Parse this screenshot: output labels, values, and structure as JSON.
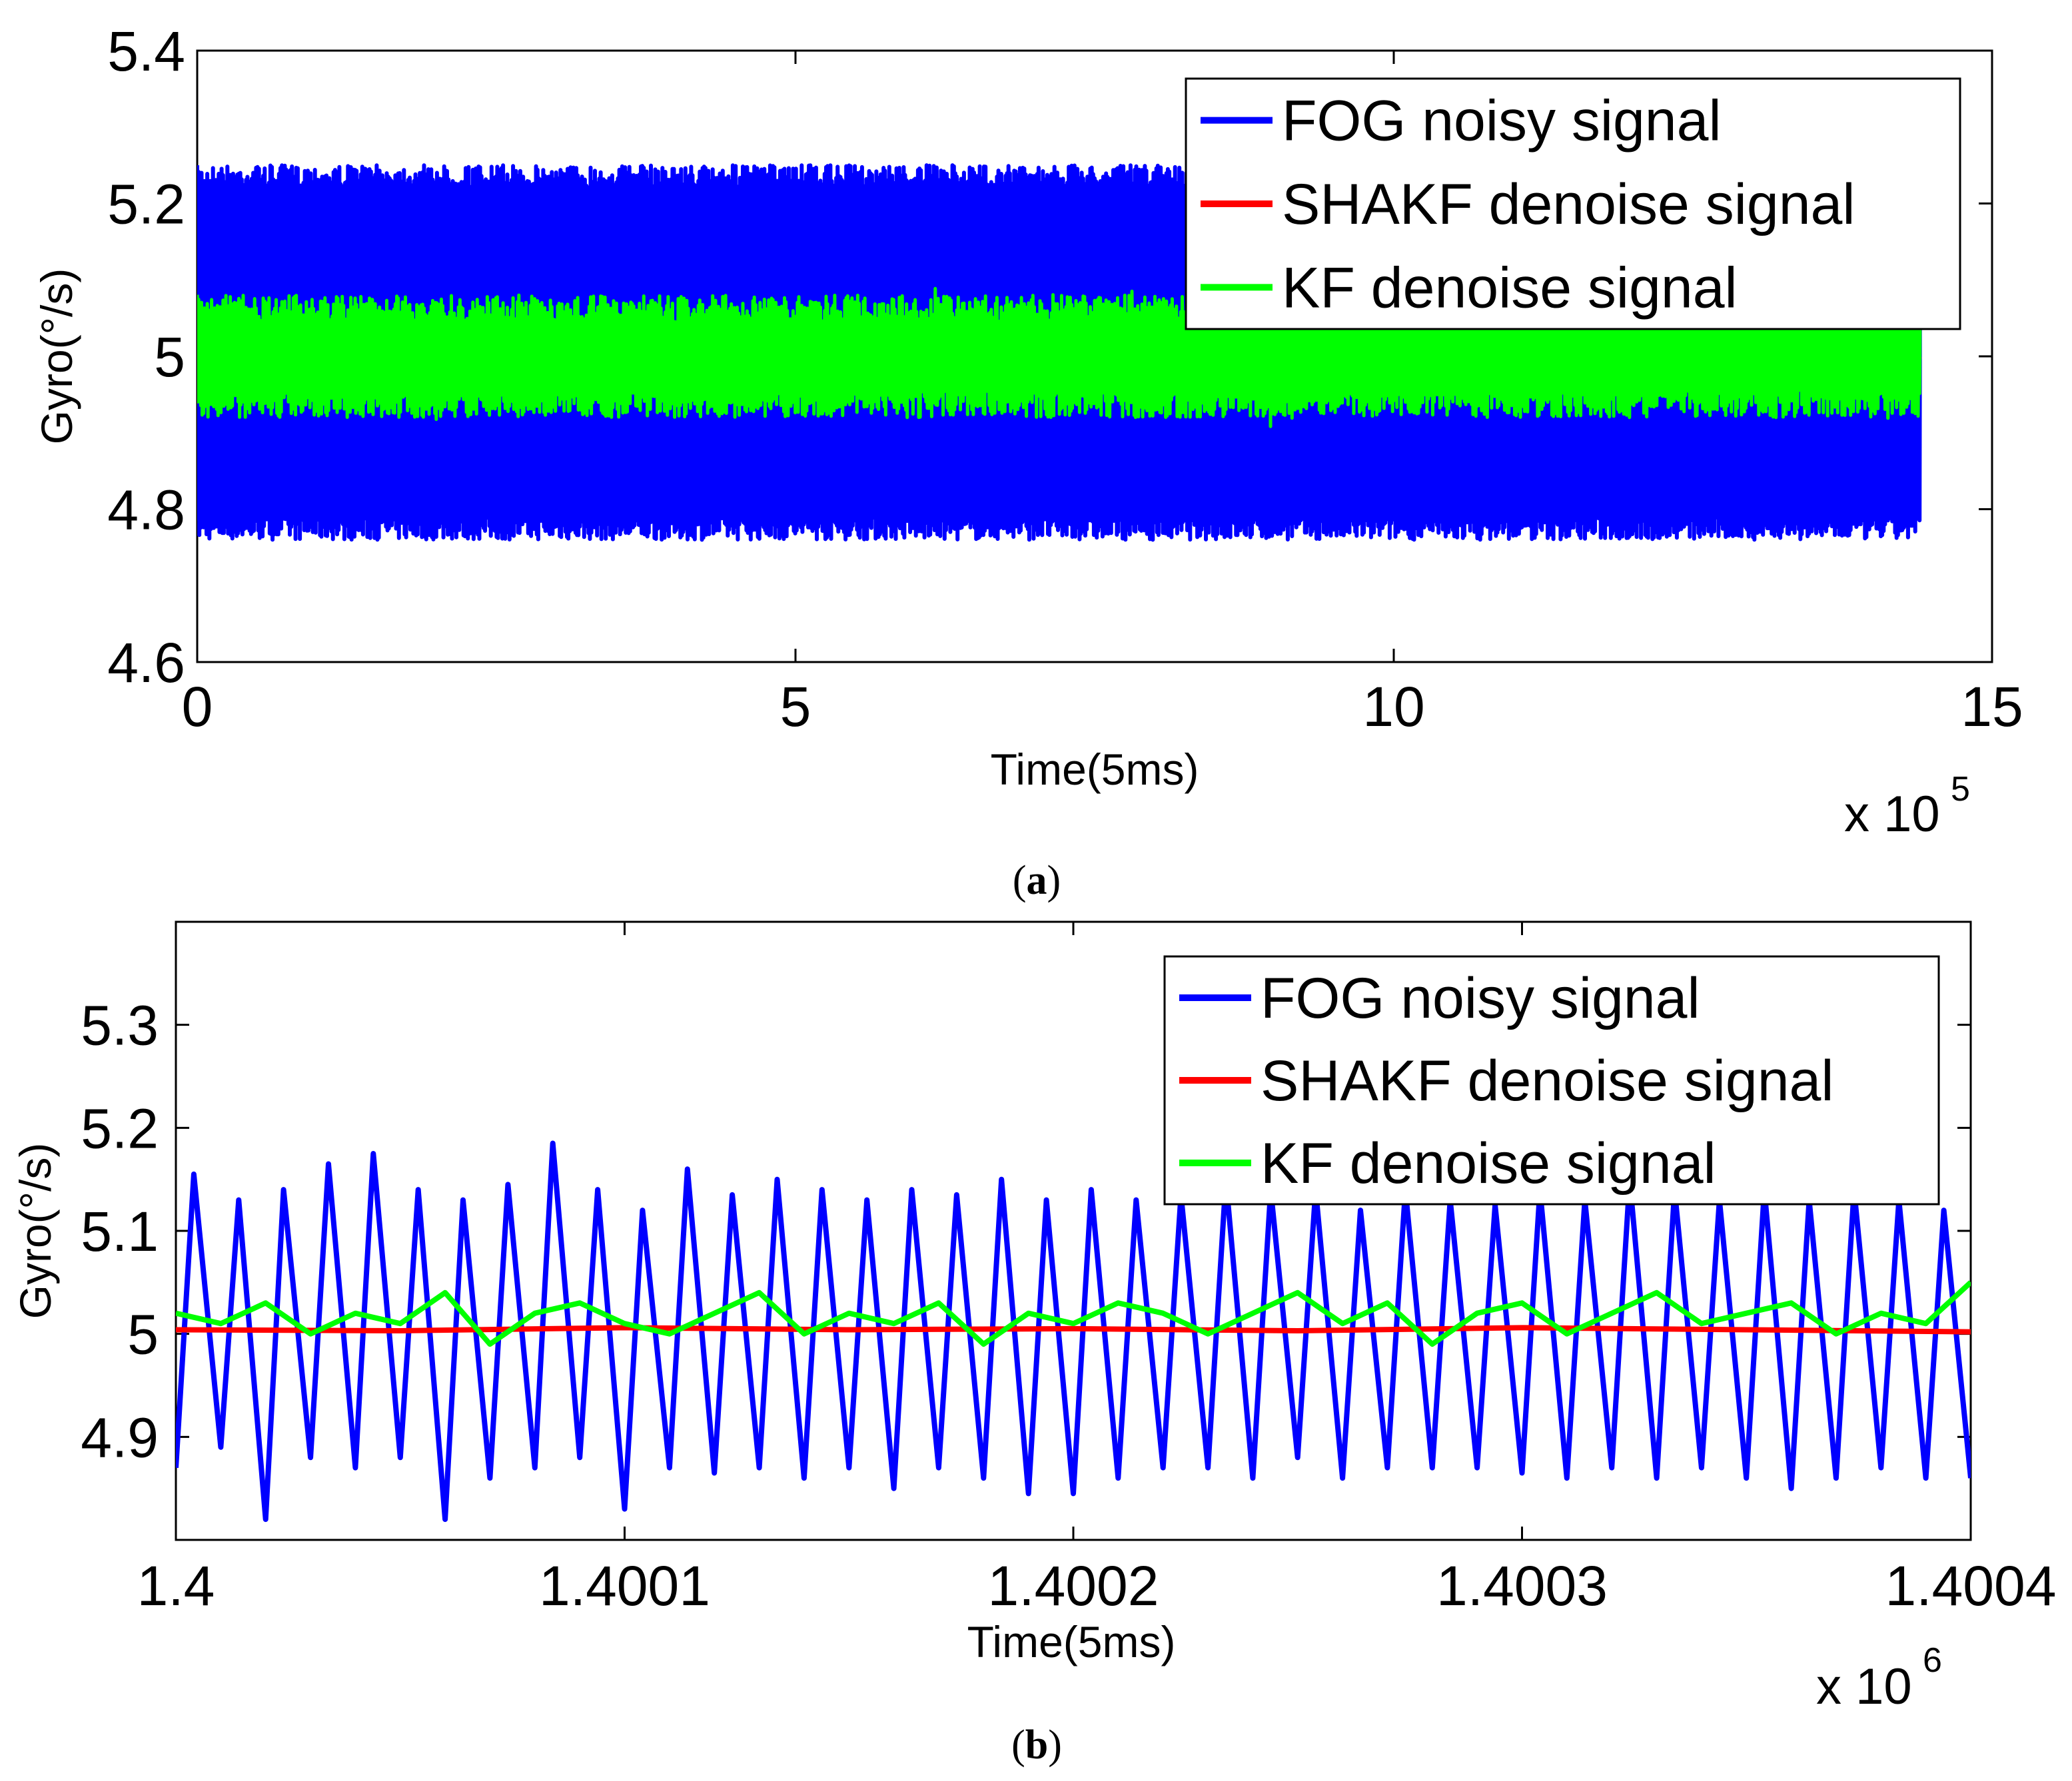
{
  "chart_data": [
    {
      "id": "a",
      "type": "line",
      "caption_letter": "a",
      "xlabel": "Time(5ms)",
      "ylabel": "Gyro(°/s)",
      "x_scale_label": "x 10",
      "x_scale_exponent": "5",
      "xlim": [
        0,
        15
      ],
      "ylim": [
        4.6,
        5.4
      ],
      "xticks": [
        "0",
        "5",
        "10",
        "15"
      ],
      "xtick_values": [
        0,
        5,
        10,
        15
      ],
      "yticks": [
        "4.6",
        "4.8",
        "5",
        "5.2",
        "5.4"
      ],
      "ytick_values": [
        4.6,
        4.8,
        5.0,
        5.2,
        5.4
      ],
      "x_data_range": [
        0,
        14.4
      ],
      "series": [
        {
          "name": "FOG noisy signal",
          "color": "#0000ff",
          "band": [
            4.76,
            5.25
          ],
          "mean": 5.0
        },
        {
          "name": "SHAKF denoise signal",
          "color": "#ff0000",
          "band": [
            4.995,
            5.005
          ],
          "mean": 5.0
        },
        {
          "name": "KF denoise signal",
          "color": "#00ff00",
          "band": [
            4.93,
            5.09
          ],
          "mean": 5.0
        }
      ],
      "legend": "top-right"
    },
    {
      "id": "b",
      "type": "line",
      "caption_letter": "b",
      "xlabel": "Time(5ms)",
      "ylabel": "Gyro(°/s)",
      "x_scale_label": "x 10",
      "x_scale_exponent": "6",
      "xlim": [
        1.4,
        1.4004
      ],
      "ylim": [
        4.8,
        5.4
      ],
      "xticks": [
        "1.4",
        "1.4001",
        "1.4002",
        "1.4003",
        "1.4004"
      ],
      "xtick_values": [
        1.4,
        1.4001,
        1.4002,
        1.4003,
        1.4004
      ],
      "yticks": [
        "4.9",
        "5",
        "5.1",
        "5.2",
        "5.3"
      ],
      "ytick_values": [
        4.9,
        5.0,
        5.1,
        5.2,
        5.3
      ],
      "series": [
        {
          "name": "FOG noisy signal",
          "color": "#0000ff",
          "x": [
            1.4,
            1.400004,
            1.40001,
            1.400014,
            1.40002,
            1.400024,
            1.40003,
            1.400034,
            1.40004,
            1.400044,
            1.40005,
            1.400054,
            1.40006,
            1.400064,
            1.40007,
            1.400074,
            1.40008,
            1.400084,
            1.40009,
            1.400094,
            1.4001,
            1.400104,
            1.40011,
            1.400114,
            1.40012,
            1.400124,
            1.40013,
            1.400134,
            1.40014,
            1.400144,
            1.40015,
            1.400154,
            1.40016,
            1.400164,
            1.40017,
            1.400174,
            1.40018,
            1.400184,
            1.40019,
            1.400194,
            1.4002,
            1.400204,
            1.40021,
            1.400214,
            1.40022,
            1.400224,
            1.40023,
            1.400234,
            1.40024,
            1.400244,
            1.40025,
            1.400254,
            1.40026,
            1.400264,
            1.40027,
            1.400274,
            1.40028,
            1.400284,
            1.40029,
            1.400294,
            1.4003,
            1.400304,
            1.40031,
            1.400314,
            1.40032,
            1.400324,
            1.40033,
            1.400334,
            1.40034,
            1.400344,
            1.40035,
            1.400354,
            1.40036,
            1.400364,
            1.40037,
            1.400374,
            1.40038,
            1.400384,
            1.40039,
            1.400394,
            1.4004
          ],
          "y": [
            4.87,
            5.155,
            4.89,
            5.13,
            4.82,
            5.14,
            4.88,
            5.165,
            4.87,
            5.175,
            4.88,
            5.14,
            4.82,
            5.13,
            4.86,
            5.145,
            4.87,
            5.185,
            4.88,
            5.14,
            4.83,
            5.12,
            4.87,
            5.16,
            4.865,
            5.135,
            4.87,
            5.15,
            4.86,
            5.14,
            4.87,
            5.13,
            4.85,
            5.14,
            4.87,
            5.135,
            4.86,
            5.15,
            4.845,
            5.13,
            4.845,
            5.14,
            4.86,
            5.13,
            4.87,
            5.135,
            4.87,
            5.15,
            4.86,
            5.14,
            4.88,
            5.14,
            4.86,
            5.12,
            4.87,
            5.14,
            4.87,
            5.13,
            4.87,
            5.125,
            4.865,
            5.14,
            4.86,
            5.13,
            4.87,
            5.15,
            4.86,
            5.14,
            4.87,
            5.13,
            4.86,
            5.14,
            4.85,
            5.13,
            4.86,
            5.14,
            4.87,
            5.13,
            4.86,
            5.12,
            4.86
          ]
        },
        {
          "name": "SHAKF denoise signal",
          "color": "#ff0000",
          "x": [
            1.4,
            1.40005,
            1.4001,
            1.40015,
            1.4002,
            1.40025,
            1.4003,
            1.40035,
            1.4004
          ],
          "y": [
            5.004,
            5.003,
            5.006,
            5.004,
            5.005,
            5.003,
            5.006,
            5.004,
            5.002
          ]
        },
        {
          "name": "KF denoise signal",
          "color": "#00ff00",
          "x": [
            1.4,
            1.40001,
            1.40002,
            1.40003,
            1.40004,
            1.40005,
            1.40006,
            1.40007,
            1.40008,
            1.40009,
            1.4001,
            1.40011,
            1.40012,
            1.40013,
            1.40014,
            1.40015,
            1.40016,
            1.40017,
            1.40018,
            1.40019,
            1.4002,
            1.40021,
            1.40022,
            1.40023,
            1.40024,
            1.40025,
            1.40026,
            1.40027,
            1.40028,
            1.40029,
            1.4003,
            1.40031,
            1.40032,
            1.40033,
            1.40034,
            1.40035,
            1.40036,
            1.40037,
            1.40038,
            1.40039,
            1.4004
          ],
          "y": [
            5.02,
            5.01,
            5.03,
            5.0,
            5.02,
            5.01,
            5.04,
            4.99,
            5.02,
            5.03,
            5.01,
            5.0,
            5.02,
            5.04,
            5.0,
            5.02,
            5.01,
            5.03,
            4.99,
            5.02,
            5.01,
            5.03,
            5.02,
            5.0,
            5.02,
            5.04,
            5.01,
            5.03,
            4.99,
            5.02,
            5.03,
            5.0,
            5.02,
            5.04,
            5.01,
            5.02,
            5.03,
            5.0,
            5.02,
            5.01,
            5.05
          ]
        }
      ],
      "legend": "top-right"
    }
  ]
}
